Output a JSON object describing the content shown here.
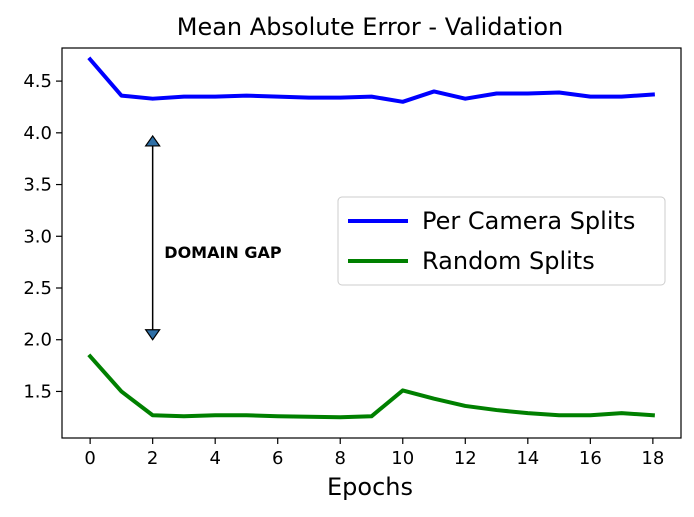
{
  "chart_data": {
    "type": "line",
    "title": "Mean Absolute Error - Validation",
    "xlabel": "Epochs",
    "ylabel": "",
    "xlim": [
      -0.9,
      18.9
    ],
    "ylim": [
      1.05,
      4.82
    ],
    "xticks": [
      0,
      2,
      4,
      6,
      8,
      10,
      12,
      14,
      16,
      18
    ],
    "yticks": [
      1.5,
      2.0,
      2.5,
      3.0,
      3.5,
      4.0,
      4.5
    ],
    "x": [
      0,
      1,
      2,
      3,
      4,
      5,
      6,
      7,
      8,
      9,
      10,
      11,
      12,
      13,
      14,
      15,
      16,
      17,
      18
    ],
    "series": [
      {
        "name": "Per Camera Splits",
        "color": "#0000ff",
        "values": [
          4.71,
          4.36,
          4.33,
          4.35,
          4.35,
          4.36,
          4.35,
          4.34,
          4.34,
          4.35,
          4.3,
          4.4,
          4.33,
          4.38,
          4.38,
          4.39,
          4.35,
          4.35,
          4.37
        ]
      },
      {
        "name": "Random Splits",
        "color": "#008000",
        "values": [
          1.84,
          1.5,
          1.27,
          1.26,
          1.27,
          1.27,
          1.26,
          1.255,
          1.25,
          1.26,
          1.51,
          1.43,
          1.36,
          1.32,
          1.29,
          1.27,
          1.27,
          1.29,
          1.27
        ]
      }
    ],
    "legend": {
      "placement": "center-right"
    },
    "grid": false,
    "annotation": {
      "text": "DOMAIN GAP",
      "arrow": {
        "x": 2,
        "y_top": 3.97,
        "y_bottom": 2.0
      },
      "text_anchor": {
        "x": 2.5,
        "y": 2.85
      },
      "arrow_color": "#2e6fa6"
    }
  }
}
